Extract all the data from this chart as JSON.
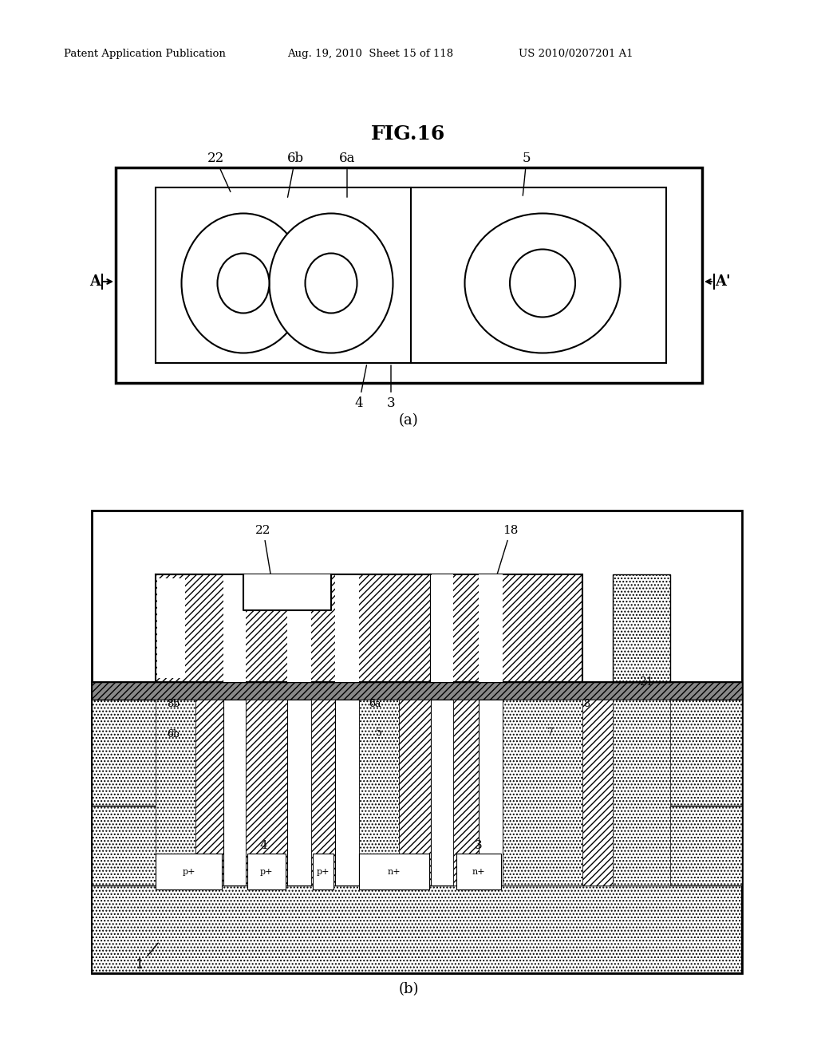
{
  "title": "FIG.16",
  "header_left": "Patent Application Publication",
  "header_mid": "Aug. 19, 2010  Sheet 15 of 118",
  "header_right": "US 2010/0207201 A1",
  "bg_color": "#ffffff",
  "fig_label_a": "(a)",
  "fig_label_b": "(b)",
  "hatch_diag": "////",
  "hatch_dot": "....",
  "dark_gray": "#888888",
  "mid_gray": "#bbbbbb"
}
